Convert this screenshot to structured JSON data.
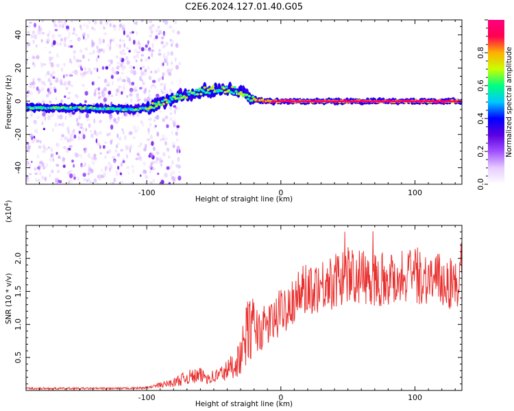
{
  "title": "C2E6.2024.127.01.40.G05",
  "colors": {
    "snr_line": "#e8312f",
    "axis": "#000000",
    "background": "#ffffff",
    "spectrogram_colormap": [
      "#ffffff",
      "#e6ccff",
      "#a050ff",
      "#5a00e0",
      "#0000ff",
      "#00c8ff",
      "#00ff80",
      "#c8ff00",
      "#ffb000",
      "#ff0050",
      "#ff0080"
    ]
  },
  "chart_data": [
    {
      "type": "heatmap",
      "name": "spectrogram",
      "xlabel": "Height of straight line (km)",
      "ylabel": "Frequency (Hz)",
      "xlim": [
        -190,
        135
      ],
      "ylim": [
        -50,
        49
      ],
      "xticks": [
        -100,
        0,
        100
      ],
      "yticks": [
        -40,
        -20,
        0,
        20,
        40
      ],
      "grid": false,
      "colorbar": {
        "label": "Normalized spectral amplitude",
        "range": [
          0.0,
          1.0
        ],
        "ticks": [
          "0.0",
          "0.2",
          "0.4",
          "0.6",
          "0.8"
        ]
      },
      "ridge_frequency_hz": {
        "x": [
          -190,
          -150,
          -110,
          -100,
          -90,
          -80,
          -70,
          -60,
          -50,
          -40,
          -30,
          -25,
          -20,
          -10,
          0,
          50,
          100,
          135
        ],
        "y": [
          -4,
          -4,
          -5,
          -4,
          -1,
          2,
          4,
          6,
          7,
          7,
          6,
          3,
          1,
          0,
          0,
          0,
          0,
          0
        ]
      }
    },
    {
      "type": "line",
      "name": "snr",
      "xlabel": "Height of straight line (km)",
      "ylabel": "SNR (10 * v/v)",
      "ymultiplier": "(x10",
      "ymultiplier_exp": "4",
      "ymultiplier_close": ")",
      "xlim": [
        -190,
        135
      ],
      "ylim": [
        0.0,
        2.5
      ],
      "xticks": [
        -100,
        0,
        100
      ],
      "yticks": [
        "0.5",
        "1.0",
        "1.5",
        "2.0"
      ],
      "grid": false,
      "series": [
        {
          "values_envelope": {
            "x": [
              -190,
              -120,
              -100,
              -90,
              -80,
              -70,
              -60,
              -50,
              -40,
              -30,
              -25,
              -20,
              -15,
              -10,
              -5,
              0,
              10,
              20,
              30,
              40,
              50,
              60,
              80,
              100,
              120,
              135
            ],
            "y": [
              0.03,
              0.03,
              0.04,
              0.08,
              0.12,
              0.2,
              0.22,
              0.2,
              0.3,
              0.5,
              0.9,
              0.95,
              0.9,
              1.0,
              1.05,
              1.2,
              1.4,
              1.55,
              1.6,
              1.65,
              1.75,
              1.7,
              1.7,
              1.75,
              1.65,
              1.6
            ]
          },
          "max_peak": 2.45
        }
      ]
    }
  ]
}
